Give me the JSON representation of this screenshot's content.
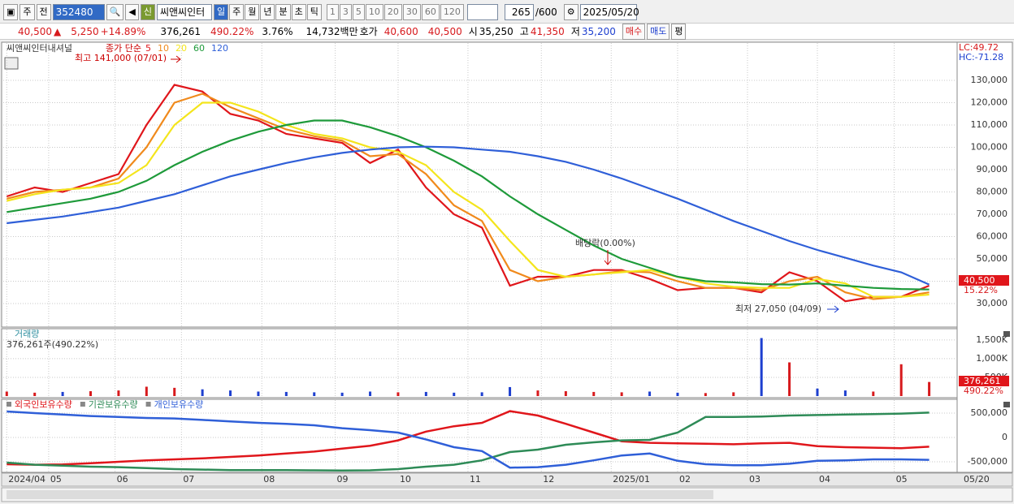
{
  "toolbar": {
    "period": "주",
    "prev": "전",
    "code": "352480",
    "new": "신",
    "name": "씨앤씨인터",
    "intervals": [
      "일",
      "주",
      "월",
      "년",
      "분",
      "초",
      "틱"
    ],
    "counts": [
      "1",
      "3",
      "5",
      "10",
      "20",
      "30",
      "60",
      "120"
    ],
    "count": "265",
    "max": "/600",
    "date": "2025/05/20"
  },
  "quote": {
    "price": "40,500",
    "arrow": "▲",
    "change": "5,250",
    "change_pct": "+14.89%",
    "volume": "376,261",
    "volume_ratio": "490.22%",
    "turnover": "3.76%",
    "amount": "14,732백만",
    "ask_label": "호가",
    "ask": "40,600",
    "bid": "40,500",
    "open_label": "시",
    "open": "35,250",
    "high_label": "고",
    "high": "41,350",
    "low_label": "저",
    "low": "35,200",
    "buy": "매수",
    "sell": "매도",
    "avg": "평"
  },
  "chart_data": [
    {
      "type": "line",
      "title": "씨앤씨인터내셔널",
      "legend_title": "종가 단순",
      "x": [
        0,
        8,
        16,
        24,
        32,
        40,
        48,
        56,
        64,
        72,
        80,
        88,
        96,
        104,
        112,
        120,
        128,
        136,
        144,
        152,
        160,
        168,
        176,
        184,
        192,
        200,
        208,
        216,
        224,
        232,
        240,
        248,
        256,
        264
      ],
      "xlim": [
        -1,
        272
      ],
      "ylim": [
        19450,
        147100
      ],
      "yticks": [
        {
          "value": 30000,
          "label": "30,000"
        },
        {
          "value": 40000,
          "label": "40,000"
        },
        {
          "value": 50000,
          "label": "50,000"
        },
        {
          "value": 60000,
          "label": "60,000"
        },
        {
          "value": 70000,
          "label": "70,000"
        },
        {
          "value": 80000,
          "label": "80,000"
        },
        {
          "value": 90000,
          "label": "90,000"
        },
        {
          "value": 100000,
          "label": "100,000"
        },
        {
          "value": 110000,
          "label": "110,000"
        },
        {
          "value": 120000,
          "label": "120,000"
        },
        {
          "value": 130000,
          "label": "130,000"
        }
      ],
      "series": [
        {
          "name": "5",
          "color": "#e0161b",
          "values": [
            78000,
            82000,
            80000,
            84000,
            88000,
            110000,
            128000,
            125000,
            115000,
            112000,
            106000,
            104000,
            102000,
            93000,
            99000,
            82000,
            70000,
            64000,
            38000,
            42000,
            42000,
            45000,
            45000,
            41000,
            36000,
            37000,
            37000,
            35000,
            44000,
            40000,
            31000,
            33000,
            33000,
            38000
          ]
        },
        {
          "name": "10",
          "color": "#f08a1c",
          "values": [
            77000,
            80000,
            81000,
            82000,
            86000,
            100000,
            120000,
            124000,
            118000,
            113000,
            108000,
            105000,
            103000,
            96000,
            97000,
            88000,
            74000,
            67000,
            45000,
            40000,
            42000,
            43000,
            44500,
            44000,
            40000,
            37000,
            37000,
            36000,
            40000,
            42000,
            35000,
            32000,
            33000,
            35000
          ]
        },
        {
          "name": "20",
          "color": "#f4e51c",
          "values": [
            76000,
            79000,
            81000,
            82000,
            84000,
            92000,
            110000,
            120000,
            120000,
            116000,
            110000,
            106000,
            104000,
            100000,
            98000,
            92000,
            80000,
            72000,
            58000,
            45000,
            42000,
            43000,
            44000,
            45000,
            42000,
            39000,
            37500,
            37000,
            37000,
            41000,
            39000,
            33000,
            33000,
            34000
          ]
        },
        {
          "name": "60",
          "color": "#1e9a3a",
          "values": [
            71000,
            73000,
            75000,
            77000,
            80000,
            85000,
            92000,
            98000,
            103000,
            107000,
            110000,
            112000,
            112000,
            109000,
            105000,
            100000,
            94000,
            87000,
            78000,
            70000,
            63000,
            56000,
            50000,
            46000,
            42000,
            40000,
            39500,
            38700,
            38500,
            39000,
            38000,
            37000,
            36500,
            36300
          ]
        },
        {
          "name": "120",
          "color": "#2f5fd8",
          "values": [
            66000,
            67500,
            69000,
            71000,
            73000,
            76000,
            79000,
            83000,
            87000,
            90000,
            93000,
            95500,
            97500,
            99000,
            100000,
            100300,
            100000,
            99000,
            98000,
            96000,
            93500,
            90000,
            86000,
            81500,
            77000,
            72000,
            67000,
            62500,
            58000,
            54000,
            50500,
            47000,
            44000,
            38500
          ]
        }
      ],
      "annotations": [
        "최고 141,000 (07/01)",
        "배당락(0.00%)",
        "최저 27,050 (04/09)"
      ],
      "lc": "LC:49.72",
      "hc": "HC:-71.28",
      "last_price": "40,500",
      "last_pct": "15.22%"
    },
    {
      "type": "bar",
      "title": "거래량",
      "subtitle": "376,261주(490.22%)",
      "x": [
        0,
        8,
        16,
        24,
        32,
        40,
        48,
        56,
        64,
        72,
        80,
        88,
        96,
        104,
        112,
        120,
        128,
        136,
        144,
        152,
        160,
        168,
        176,
        184,
        192,
        200,
        208,
        216,
        224,
        232,
        240,
        248,
        256,
        264
      ],
      "xlim": [
        -1,
        272
      ],
      "ylim": [
        0,
        1800000
      ],
      "yticks": [
        {
          "value": 500000,
          "label": "500K"
        },
        {
          "value": 1000000,
          "label": "1,000K"
        },
        {
          "value": 1500000,
          "label": "1,500K"
        }
      ],
      "values": [
        120000,
        90000,
        110000,
        130000,
        150000,
        250000,
        220000,
        180000,
        150000,
        120000,
        110000,
        100000,
        90000,
        120000,
        100000,
        110000,
        90000,
        100000,
        240000,
        150000,
        130000,
        110000,
        100000,
        120000,
        90000,
        80000,
        100000,
        1550000,
        900000,
        200000,
        150000,
        120000,
        850000,
        376261
      ],
      "colors": [
        "#d7191c",
        "#1d3fcf"
      ],
      "last_value": "376,261",
      "last_pct": "490.22%"
    },
    {
      "type": "line",
      "x": [
        0,
        8,
        16,
        24,
        32,
        40,
        48,
        56,
        64,
        72,
        80,
        88,
        96,
        104,
        112,
        120,
        128,
        136,
        144,
        152,
        160,
        168,
        176,
        184,
        192,
        200,
        208,
        216,
        224,
        232,
        240,
        248,
        256,
        264
      ],
      "xlim": [
        -1,
        272
      ],
      "ylim": [
        -717000,
        783000
      ],
      "yticks": [
        {
          "value": -500000,
          "label": "-500,000"
        },
        0,
        {
          "value": 500000,
          "label": "500,000"
        }
      ],
      "xticks": [
        {
          "value": 0,
          "label": "2024/04"
        },
        {
          "value": 12,
          "label": "05"
        },
        {
          "value": 31,
          "label": "06"
        },
        {
          "value": 50,
          "label": "07"
        },
        {
          "value": 73,
          "label": "08"
        },
        {
          "value": 94,
          "label": "09"
        },
        {
          "value": 112,
          "label": "10"
        },
        {
          "value": 132,
          "label": "11"
        },
        {
          "value": 153,
          "label": "12"
        },
        {
          "value": 173,
          "label": "2025/01"
        },
        {
          "value": 192,
          "label": "02"
        },
        {
          "value": 212,
          "label": "03"
        },
        {
          "value": 232,
          "label": "04"
        },
        {
          "value": 254,
          "label": "05"
        }
      ],
      "cursor_date": "05/20",
      "series": [
        {
          "name": "외국인보유수량",
          "color": "#e0161b",
          "values": [
            -550000,
            -560000,
            -555000,
            -530000,
            -500000,
            -470000,
            -450000,
            -430000,
            -400000,
            -370000,
            -330000,
            -290000,
            -230000,
            -170000,
            -60000,
            120000,
            230000,
            300000,
            540000,
            450000,
            280000,
            100000,
            -80000,
            -110000,
            -120000,
            -130000,
            -140000,
            -120000,
            -110000,
            -180000,
            -200000,
            -210000,
            -220000,
            -190000
          ]
        },
        {
          "name": "기관보유수량",
          "color": "#2e8b57",
          "values": [
            -517000,
            -560000,
            -580000,
            -600000,
            -610000,
            -630000,
            -650000,
            -660000,
            -670000,
            -670000,
            -670000,
            -675000,
            -680000,
            -675000,
            -650000,
            -600000,
            -560000,
            -470000,
            -300000,
            -250000,
            -150000,
            -100000,
            -60000,
            -50000,
            100000,
            420000,
            420000,
            430000,
            450000,
            460000,
            470000,
            480000,
            490000,
            510000
          ]
        },
        {
          "name": "개인보유수량",
          "color": "#2f5fd8",
          "values": [
            533000,
            500000,
            470000,
            440000,
            420000,
            400000,
            390000,
            360000,
            330000,
            300000,
            280000,
            250000,
            190000,
            150000,
            100000,
            -40000,
            -200000,
            -280000,
            -620000,
            -610000,
            -560000,
            -470000,
            -370000,
            -330000,
            -480000,
            -550000,
            -570000,
            -570000,
            -540000,
            -480000,
            -470000,
            -450000,
            -450000,
            -460000
          ]
        }
      ]
    }
  ]
}
